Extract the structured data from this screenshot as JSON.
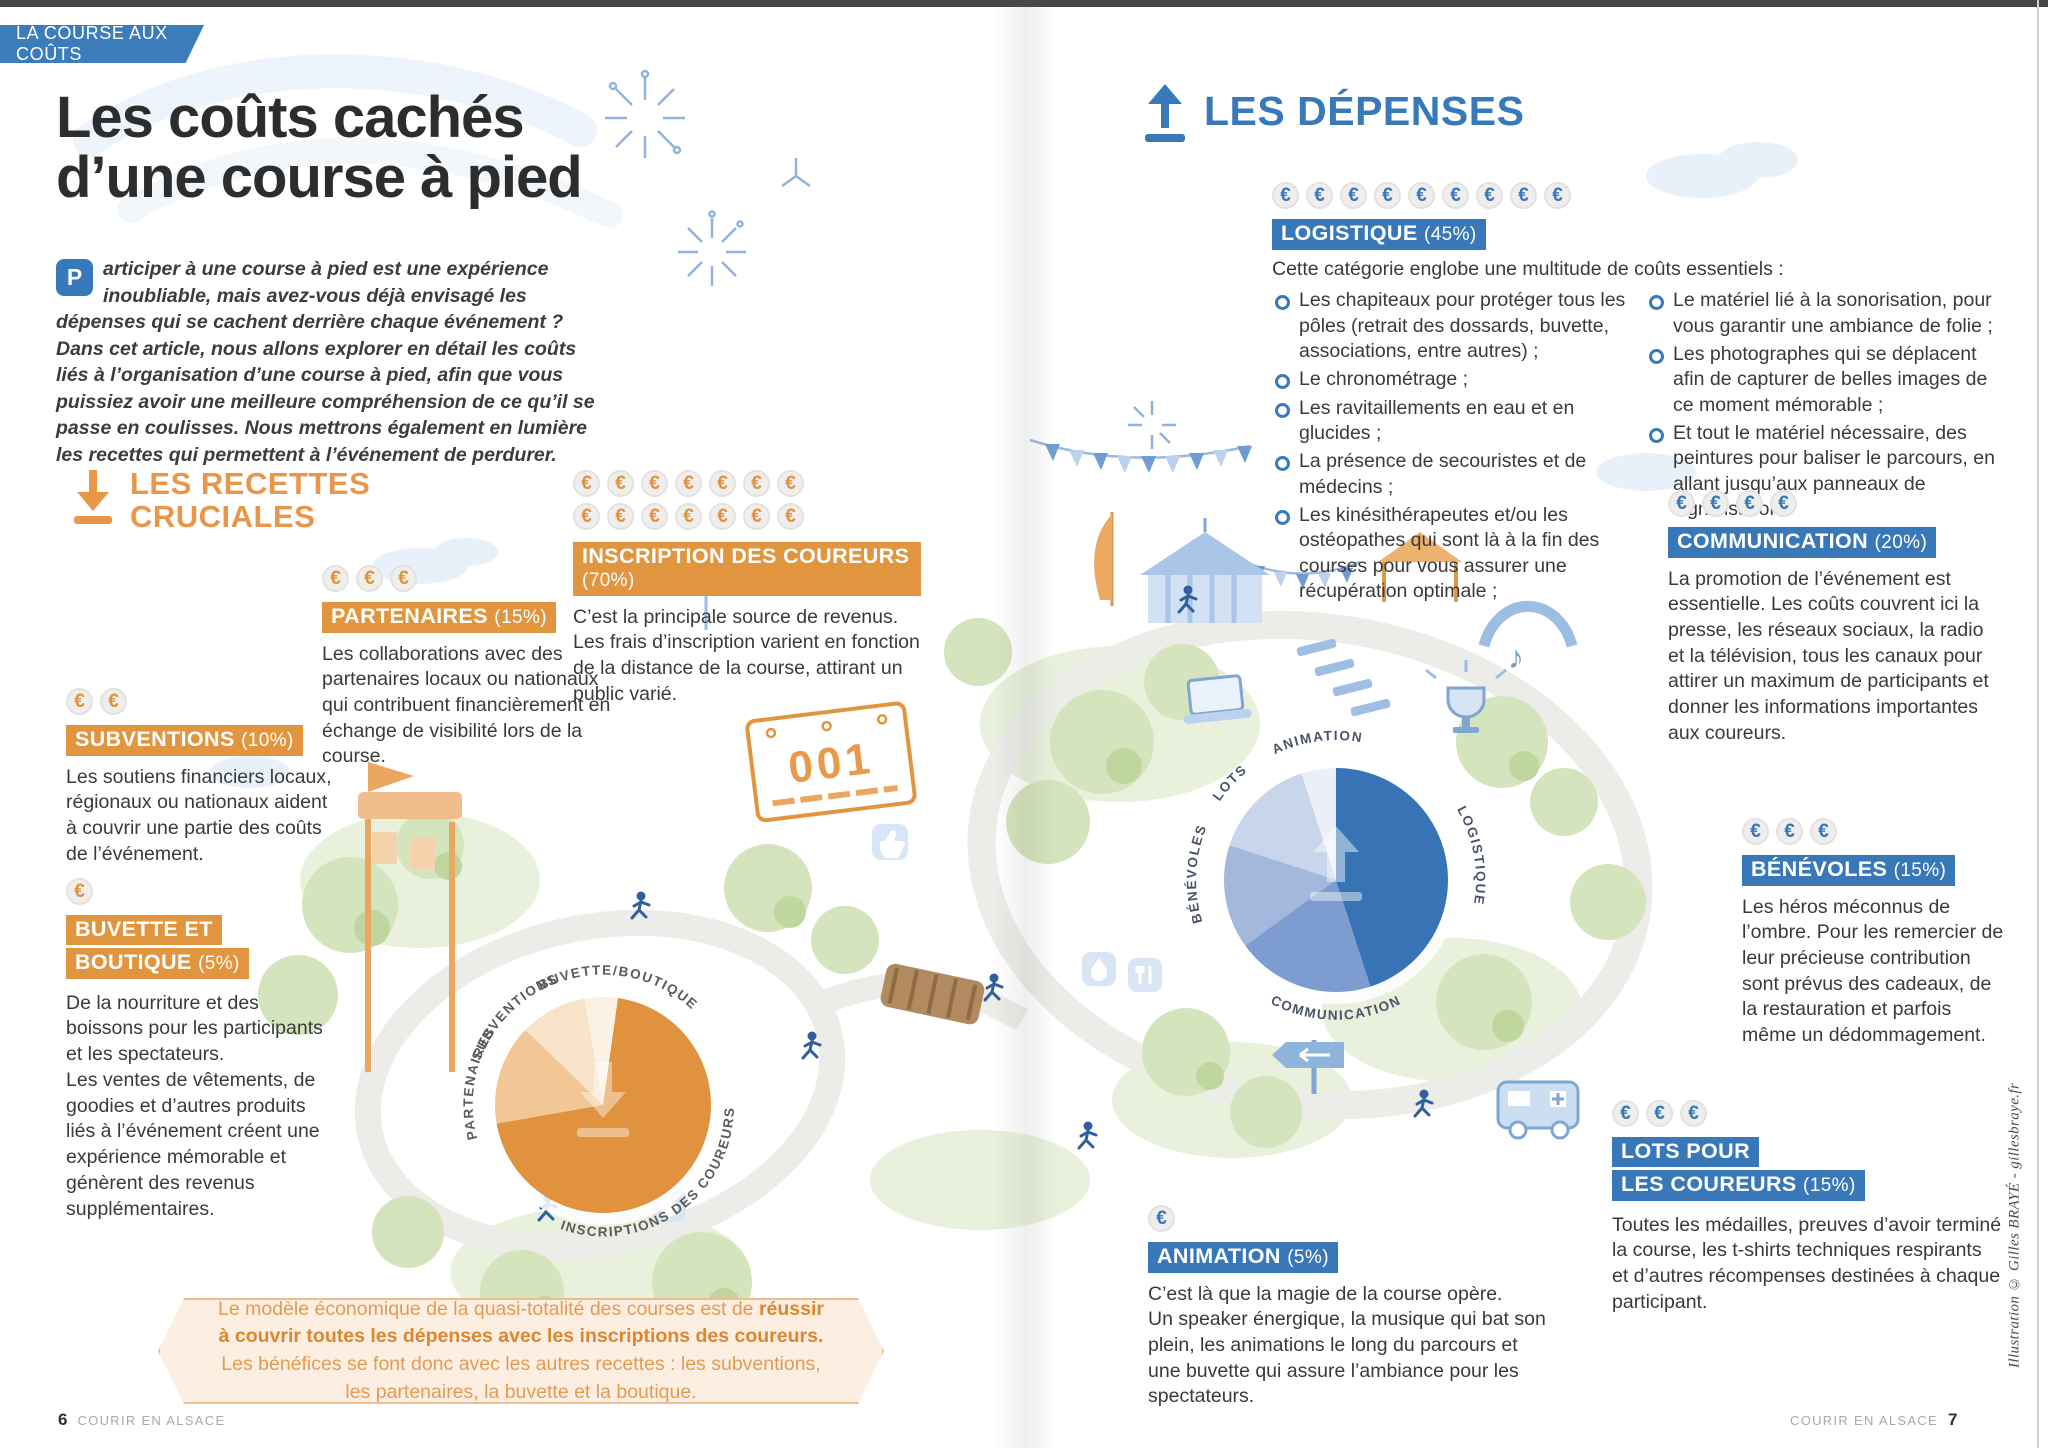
{
  "ribbon": {
    "label": "LA COURSE AUX COÛTS"
  },
  "header": {
    "title_line1": "Les coûts cachés",
    "title_line2": "d’une course à pied",
    "dropcap": "P",
    "intro": "articiper à une course à pied est une expérience inoubliable, mais avez-vous déjà envisagé les dépenses qui se cachent derrière chaque événement ? Dans cet article, nous allons explorer en détail les coûts liés à l’organisation d’une course à pied, afin que vous puissiez avoir une meilleure compréhension de ce qu’il se passe en coulisses. Nous mettrons également en lumière les recettes qui permettent à l’événement de perdurer."
  },
  "icons": {
    "euro": "€"
  },
  "recettes": {
    "heading_line1": "LES RECETTES",
    "heading_line2": "CRUCIALES",
    "subventions": {
      "label": "SUBVENTIONS",
      "pct": "(10%)",
      "coins": 2,
      "text": "Les soutiens financiers locaux, régionaux ou nationaux aident à couvrir une partie des coûts de l’événement."
    },
    "partenaires": {
      "label": "PARTENAIRES",
      "pct": "(15%)",
      "coins": 3,
      "text": "Les collaborations avec des partenaires locaux ou nationaux qui contribuent financièrement en échange de visibilité lors de la course."
    },
    "inscription": {
      "label": "INSCRIPTION DES COUREURS",
      "pct": "(70%)",
      "coins_row1": 7,
      "coins_row2": 7,
      "text": "C’est la principale source de revenus. Les frais d’inscription varient en fonction de la distance de la course, attirant un public varié."
    },
    "buvette": {
      "label_line1": "BUVETTE ET",
      "label_line2": "BOUTIQUE",
      "pct": "(5%)",
      "coins": 1,
      "text": "De la nourriture et des boissons pour les participants et les spectateurs.\nLes ventes de vêtements, de goodies et d’autres produits liés à l’événement créent une expérience mémorable et génèrent des revenus supplémentaires."
    },
    "note_pre": "Le modèle économique de la quasi-totalité des courses est de ",
    "note_bold": "réussir à couvrir toutes les dépenses avec les inscriptions des coureurs.",
    "note_post": " Les bénéfices se font donc avec les autres recettes : les subventions, les partenaires, la buvette et la boutique."
  },
  "depenses": {
    "heading": "LES DÉPENSES",
    "logistique": {
      "label": "LOGISTIQUE",
      "pct": "(45%)",
      "coins": 9,
      "intro": "Cette catégorie englobe une multitude de coûts essentiels :",
      "bullets_left": [
        "Les chapiteaux pour protéger tous les pôles (retrait des dossards, buvette, associations, entre autres) ;",
        "Le chronométrage ;",
        "Les ravitaillements en eau et en glucides ;",
        "La présence de secouristes et de médecins ;",
        "Les kinésithérapeutes et/ou les ostéopathes qui sont là à la fin des courses pour vous assurer une récupération optimale ;"
      ],
      "bullets_right": [
        "Le matériel lié à la sonorisation, pour vous garantir une ambiance de folie ;",
        "Les photographes qui se déplacent afin de capturer de belles images de ce moment mémorable ;",
        "Et tout le matériel nécessaire, des peintures pour baliser le parcours, en allant jusqu’aux panneaux de signalisation."
      ]
    },
    "communication": {
      "label": "COMMUNICATION",
      "pct": "(20%)",
      "coins": 4,
      "text": "La promotion de l’événement est essentielle. Les coûts couvrent ici la presse, les réseaux sociaux, la radio et la télévision, tous les canaux pour attirer un maximum de participants et donner les informations importantes aux coureurs."
    },
    "benevoles": {
      "label": "BÉNÉVOLES",
      "pct": "(15%)",
      "coins": 3,
      "text": "Les héros méconnus de l’ombre. Pour les remercier de leur précieuse contribution sont prévus des cadeaux, de la restauration et parfois même un dédommagement."
    },
    "lots": {
      "label_line1": "LOTS POUR",
      "label_line2": "LES COUREURS",
      "pct": "(15%)",
      "coins": 3,
      "text": "Toutes les médailles, preuves d’avoir terminé la course, les t-shirts techniques respirants et d’autres récompenses destinées à chaque participant."
    },
    "animation": {
      "label": "ANIMATION",
      "pct": "(5%)",
      "coins": 1,
      "text": "C’est là que la magie de la course opère.\nUn speaker énergique, la musique qui bat son plein, les animations le long du parcours et une buvette qui assure l’ambiance pour les spectateurs."
    }
  },
  "illustration": {
    "bib_number": "001"
  },
  "footer": {
    "left_page": "6",
    "left_text": "COURIR EN ALSACE",
    "right_text": "COURIR EN ALSACE",
    "right_page": "7",
    "credit": "Illustration © Gilles BRAYÉ - gillesbraye.fr"
  },
  "chart_data": [
    {
      "type": "pie",
      "title": "LES RECETTES CRUCIALES",
      "legend_position": "around",
      "start_angle": -10,
      "slices": [
        {
          "label": "BUVETTE/BOUTIQUE",
          "value": 5,
          "color": "#fbf2e3"
        },
        {
          "label": "INSCRIPTIONS DES COUREURS",
          "value": 70,
          "color": "#e0923e"
        },
        {
          "label": "PARTENAIRES",
          "value": 15,
          "color": "#f2c795"
        },
        {
          "label": "SUBVENTIONS",
          "value": 10,
          "color": "#f8e3c8"
        }
      ]
    },
    {
      "type": "pie",
      "title": "LES DÉPENSES",
      "legend_position": "around",
      "start_angle": -18,
      "slices": [
        {
          "label": "ANIMATION",
          "value": 5,
          "color": "#ebf0f8"
        },
        {
          "label": "LOGISTIQUE",
          "value": 45,
          "color": "#3873b5"
        },
        {
          "label": "COMMUNICATION",
          "value": 20,
          "color": "#7d9cd0"
        },
        {
          "label": "BÉNÉVOLES",
          "value": 15,
          "color": "#a3b8dc"
        },
        {
          "label": "LOTS",
          "value": 15,
          "color": "#c9d5eb"
        }
      ]
    }
  ]
}
